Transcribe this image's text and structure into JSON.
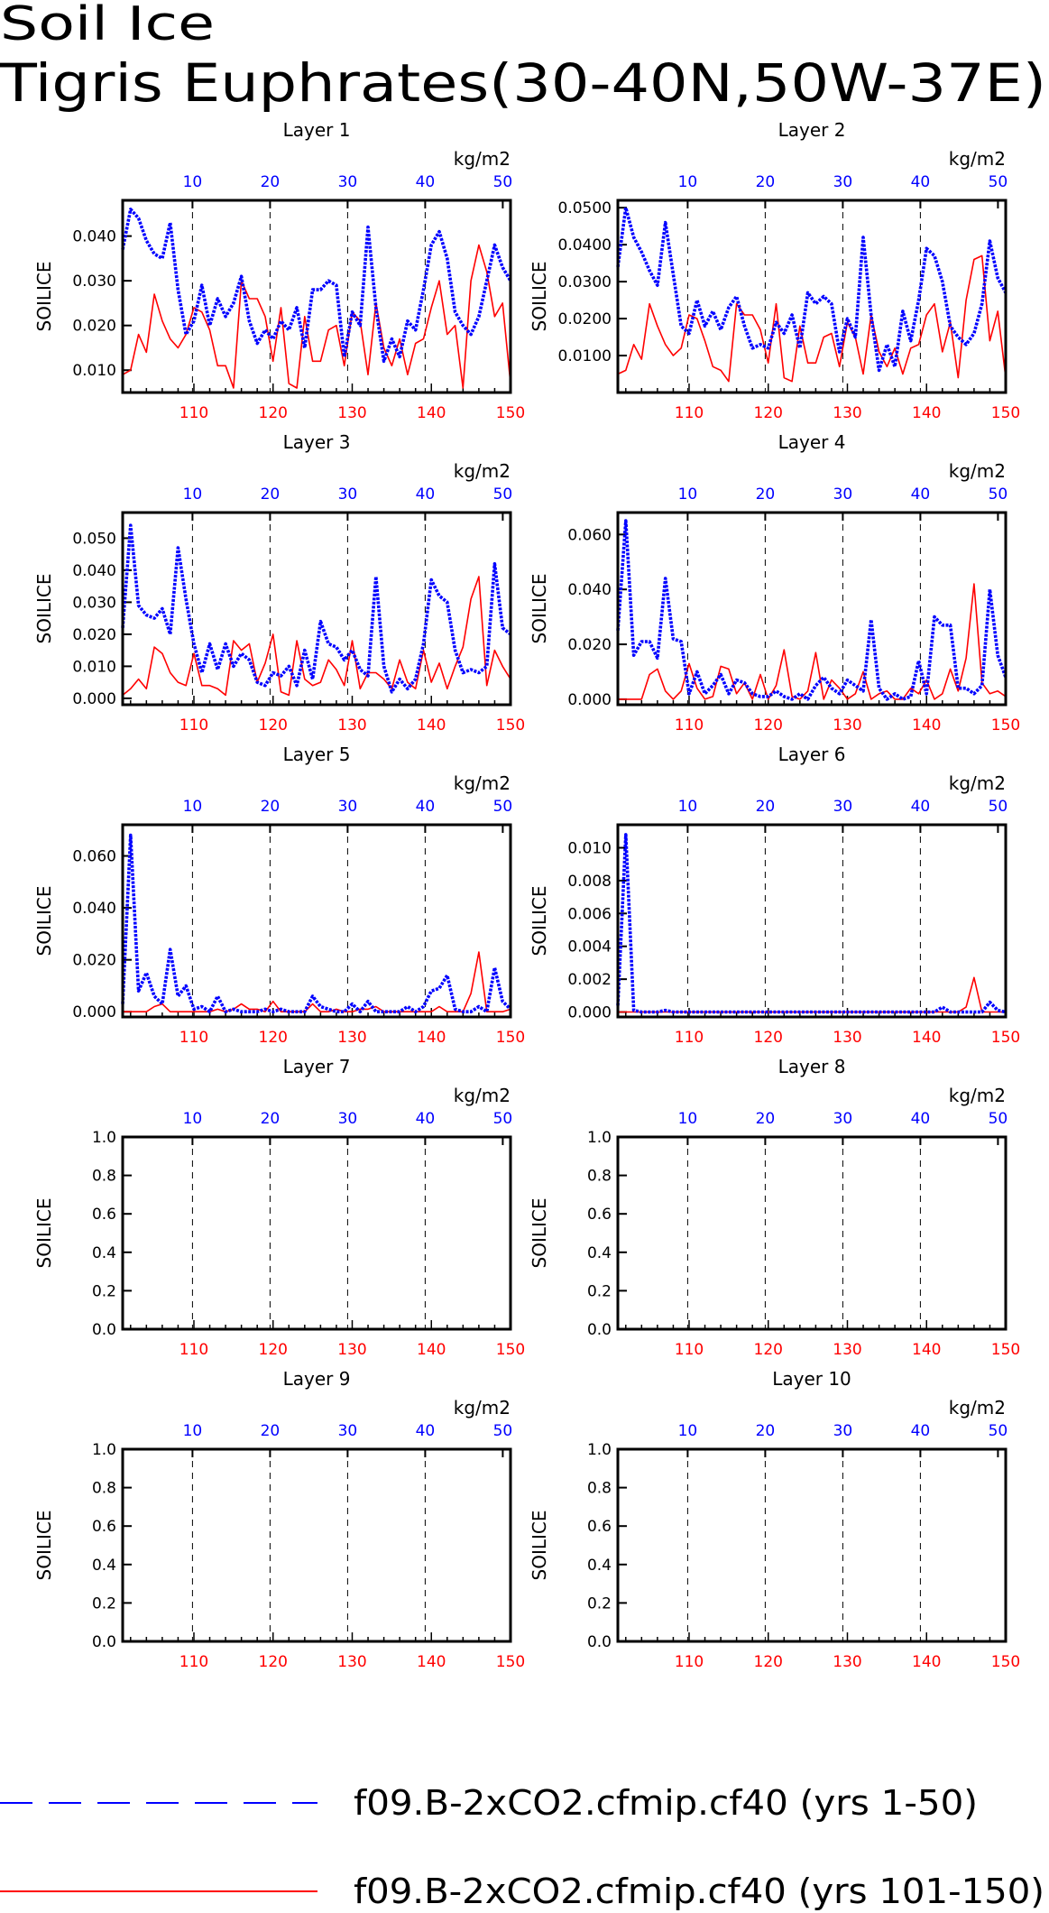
{
  "title": "Soil Ice",
  "subtitle": "Tigris Euphrates(30-40N,50W-37E)",
  "colors": {
    "series_a": "#0000ff",
    "series_b": "#ff0000",
    "axis": "#000000"
  },
  "legend": [
    {
      "label": "f09.B-2xCO2.cfmip.cf40 (yrs 1-50)",
      "style": "dashed",
      "color": "#0000ff"
    },
    {
      "label": "f09.B-2xCO2.cfmip.cf40 (yrs 101-150)",
      "style": "solid",
      "color": "#ff0000"
    }
  ],
  "chart_data": [
    {
      "type": "line",
      "title": "Layer 1",
      "ylabel": "SOILICE",
      "top_unit": "kg/m2",
      "x_bottom": [
        101,
        150
      ],
      "x_bottom_ticks": [
        110,
        120,
        130,
        140,
        150
      ],
      "x_top_ticks": [
        10,
        20,
        30,
        40,
        50
      ],
      "ylim": [
        0.005,
        0.048
      ],
      "yticks": [
        "0.010",
        "0.020",
        "0.030",
        "0.040"
      ],
      "ytick_values": [
        0.01,
        0.02,
        0.03,
        0.04
      ],
      "grid": "vertical dashed at top ticks",
      "series": [
        {
          "values": [
            0.037,
            0.046,
            0.044,
            0.039,
            0.036,
            0.035,
            0.043,
            0.028,
            0.018,
            0.021,
            0.029,
            0.02,
            0.026,
            0.022,
            0.025,
            0.031,
            0.021,
            0.016,
            0.019,
            0.017,
            0.021,
            0.019,
            0.024,
            0.015,
            0.028,
            0.028,
            0.03,
            0.029,
            0.013,
            0.023,
            0.02,
            0.042,
            0.024,
            0.012,
            0.017,
            0.013,
            0.021,
            0.019,
            0.028,
            0.038,
            0.041,
            0.035,
            0.023,
            0.02,
            0.018,
            0.022,
            0.03,
            0.038,
            0.033,
            0.03
          ]
        },
        {
          "values": [
            0.009,
            0.01,
            0.018,
            0.014,
            0.027,
            0.021,
            0.017,
            0.015,
            0.018,
            0.024,
            0.023,
            0.019,
            0.011,
            0.011,
            0.006,
            0.03,
            0.026,
            0.026,
            0.022,
            0.012,
            0.024,
            0.007,
            0.006,
            0.022,
            0.012,
            0.012,
            0.019,
            0.02,
            0.011,
            0.023,
            0.021,
            0.009,
            0.025,
            0.015,
            0.011,
            0.017,
            0.009,
            0.016,
            0.017,
            0.024,
            0.03,
            0.018,
            0.02,
            0.006,
            0.03,
            0.038,
            0.032,
            0.022,
            0.025,
            0.007
          ]
        }
      ]
    },
    {
      "type": "line",
      "title": "Layer 2",
      "ylabel": "SOILICE",
      "top_unit": "kg/m2",
      "x_bottom": [
        101,
        150
      ],
      "x_bottom_ticks": [
        110,
        120,
        130,
        140,
        150
      ],
      "x_top_ticks": [
        10,
        20,
        30,
        40,
        50
      ],
      "ylim": [
        0.0,
        0.052
      ],
      "yticks": [
        "0.0100",
        "0.0200",
        "0.0300",
        "0.0400",
        "0.0500"
      ],
      "ytick_values": [
        0.01,
        0.02,
        0.03,
        0.04,
        0.05
      ],
      "grid": "vertical dashed at top ticks",
      "series": [
        {
          "values": [
            0.034,
            0.05,
            0.042,
            0.038,
            0.033,
            0.029,
            0.046,
            0.032,
            0.018,
            0.016,
            0.025,
            0.018,
            0.022,
            0.017,
            0.023,
            0.026,
            0.018,
            0.012,
            0.013,
            0.012,
            0.019,
            0.016,
            0.021,
            0.012,
            0.027,
            0.024,
            0.026,
            0.024,
            0.011,
            0.02,
            0.015,
            0.042,
            0.021,
            0.006,
            0.013,
            0.007,
            0.022,
            0.014,
            0.025,
            0.039,
            0.037,
            0.03,
            0.018,
            0.015,
            0.013,
            0.016,
            0.024,
            0.041,
            0.031,
            0.027
          ]
        },
        {
          "values": [
            0.005,
            0.006,
            0.013,
            0.009,
            0.024,
            0.018,
            0.013,
            0.01,
            0.012,
            0.021,
            0.02,
            0.014,
            0.007,
            0.006,
            0.003,
            0.024,
            0.021,
            0.021,
            0.017,
            0.008,
            0.024,
            0.004,
            0.003,
            0.018,
            0.008,
            0.008,
            0.015,
            0.016,
            0.007,
            0.019,
            0.015,
            0.005,
            0.021,
            0.011,
            0.007,
            0.012,
            0.005,
            0.012,
            0.013,
            0.021,
            0.024,
            0.011,
            0.019,
            0.004,
            0.025,
            0.036,
            0.037,
            0.014,
            0.022,
            0.004
          ]
        }
      ]
    },
    {
      "type": "line",
      "title": "Layer 3",
      "ylabel": "SOILICE",
      "top_unit": "kg/m2",
      "x_bottom": [
        101,
        150
      ],
      "x_bottom_ticks": [
        110,
        120,
        130,
        140,
        150
      ],
      "x_top_ticks": [
        10,
        20,
        30,
        40,
        50
      ],
      "ylim": [
        -0.002,
        0.058
      ],
      "yticks": [
        "0.000",
        "0.010",
        "0.020",
        "0.030",
        "0.040",
        "0.050"
      ],
      "ytick_values": [
        0,
        0.01,
        0.02,
        0.03,
        0.04,
        0.05
      ],
      "grid": "vertical dashed at top ticks",
      "series": [
        {
          "values": [
            0.022,
            0.054,
            0.029,
            0.026,
            0.025,
            0.028,
            0.02,
            0.047,
            0.031,
            0.017,
            0.008,
            0.017,
            0.009,
            0.017,
            0.01,
            0.014,
            0.012,
            0.005,
            0.004,
            0.008,
            0.007,
            0.01,
            0.004,
            0.015,
            0.006,
            0.024,
            0.017,
            0.016,
            0.012,
            0.015,
            0.009,
            0.007,
            0.038,
            0.01,
            0.002,
            0.006,
            0.003,
            0.006,
            0.017,
            0.037,
            0.032,
            0.03,
            0.015,
            0.008,
            0.009,
            0.008,
            0.01,
            0.042,
            0.022,
            0.02
          ]
        },
        {
          "values": [
            0.001,
            0.003,
            0.006,
            0.003,
            0.016,
            0.014,
            0.008,
            0.005,
            0.004,
            0.014,
            0.004,
            0.004,
            0.003,
            0.001,
            0.018,
            0.015,
            0.017,
            0.005,
            0.011,
            0.02,
            0.002,
            0.001,
            0.018,
            0.006,
            0.004,
            0.005,
            0.012,
            0.009,
            0.004,
            0.018,
            0.003,
            0.008,
            0.008,
            0.006,
            0.003,
            0.012,
            0.005,
            0.003,
            0.015,
            0.005,
            0.011,
            0.003,
            0.01,
            0.016,
            0.031,
            0.038,
            0.004,
            0.015,
            0.01,
            0.006
          ]
        }
      ]
    },
    {
      "type": "line",
      "title": "Layer 4",
      "ylabel": "SOILICE",
      "top_unit": "kg/m2",
      "x_bottom": [
        101,
        150
      ],
      "x_bottom_ticks": [
        110,
        120,
        130,
        140,
        150
      ],
      "x_top_ticks": [
        10,
        20,
        30,
        40,
        50
      ],
      "ylim": [
        -0.002,
        0.068
      ],
      "yticks": [
        "0.000",
        "0.020",
        "0.040",
        "0.060"
      ],
      "ytick_values": [
        0,
        0.02,
        0.04,
        0.06
      ],
      "grid": "vertical dashed at top ticks",
      "series": [
        {
          "values": [
            0.025,
            0.065,
            0.016,
            0.021,
            0.021,
            0.015,
            0.044,
            0.022,
            0.021,
            0.002,
            0.01,
            0.002,
            0.005,
            0.009,
            0.002,
            0.007,
            0.006,
            0.002,
            0.001,
            0.001,
            0.003,
            0.001,
            0.0,
            0.002,
            0.0,
            0.005,
            0.008,
            0.004,
            0.002,
            0.007,
            0.005,
            0.003,
            0.029,
            0.004,
            0.0,
            0.002,
            0.0,
            0.001,
            0.014,
            0.002,
            0.03,
            0.027,
            0.027,
            0.004,
            0.004,
            0.002,
            0.005,
            0.04,
            0.016,
            0.008
          ]
        },
        {
          "values": [
            0.0,
            0.0,
            0.0,
            0.0,
            0.009,
            0.011,
            0.003,
            0.0,
            0.003,
            0.013,
            0.004,
            0.0,
            0.001,
            0.012,
            0.011,
            0.002,
            0.006,
            0.0,
            0.009,
            0.0,
            0.005,
            0.018,
            0.001,
            0.0,
            0.003,
            0.017,
            0.0,
            0.007,
            0.004,
            0.0,
            0.002,
            0.01,
            0.0,
            0.002,
            0.003,
            0.0,
            0.0,
            0.004,
            0.002,
            0.007,
            0.0,
            0.002,
            0.011,
            0.003,
            0.015,
            0.042,
            0.006,
            0.002,
            0.003,
            0.001
          ]
        }
      ]
    },
    {
      "type": "line",
      "title": "Layer 5",
      "ylabel": "SOILICE",
      "top_unit": "kg/m2",
      "x_bottom": [
        101,
        150
      ],
      "x_bottom_ticks": [
        110,
        120,
        130,
        140,
        150
      ],
      "x_top_ticks": [
        10,
        20,
        30,
        40,
        50
      ],
      "ylim": [
        -0.002,
        0.072
      ],
      "yticks": [
        "0.000",
        "0.020",
        "0.040",
        "0.060"
      ],
      "ytick_values": [
        0,
        0.02,
        0.04,
        0.06
      ],
      "grid": "vertical dashed at top ticks",
      "series": [
        {
          "values": [
            0.003,
            0.068,
            0.008,
            0.015,
            0.006,
            0.003,
            0.024,
            0.006,
            0.01,
            0.001,
            0.002,
            0.0,
            0.006,
            0.0,
            0.001,
            0.0,
            0.0,
            0.0,
            0.001,
            0.0,
            0.001,
            0.0,
            0.0,
            0.0,
            0.006,
            0.002,
            0.001,
            0.0,
            0.0,
            0.003,
            0.0,
            0.004,
            0.0,
            0.0,
            0.0,
            0.0,
            0.002,
            0.0,
            0.002,
            0.008,
            0.009,
            0.014,
            0.001,
            0.0,
            0.0,
            0.002,
            0.0,
            0.017,
            0.004,
            0.001
          ]
        },
        {
          "values": [
            0.0,
            0.0,
            0.0,
            0.0,
            0.002,
            0.003,
            0.0,
            0.0,
            0.0,
            0.0,
            0.0,
            0.0,
            0.001,
            0.0,
            0.001,
            0.003,
            0.001,
            0.001,
            0.0,
            0.004,
            0.0,
            0.0,
            0.0,
            0.0,
            0.003,
            0.0,
            0.0,
            0.001,
            0.0,
            0.0,
            0.001,
            0.001,
            0.002,
            0.0,
            0.0,
            0.0,
            0.0,
            0.0,
            0.0,
            0.0,
            0.002,
            0.0,
            0.0,
            0.0,
            0.007,
            0.023,
            0.0,
            0.0,
            0.0,
            0.001
          ]
        }
      ]
    },
    {
      "type": "line",
      "title": "Layer 6",
      "ylabel": "SOILICE",
      "top_unit": "kg/m2",
      "x_bottom": [
        101,
        150
      ],
      "x_bottom_ticks": [
        110,
        120,
        130,
        140,
        150
      ],
      "x_top_ticks": [
        10,
        20,
        30,
        40,
        50
      ],
      "ylim": [
        -0.0003,
        0.0114
      ],
      "yticks": [
        "0.000",
        "0.002",
        "0.004",
        "0.006",
        "0.008",
        "0.010"
      ],
      "ytick_values": [
        0,
        0.002,
        0.004,
        0.006,
        0.008,
        0.01
      ],
      "grid": "vertical dashed at top ticks",
      "series": [
        {
          "values": [
            0.0004,
            0.0108,
            0.0001,
            0.0,
            0.0,
            0.0,
            0.0001,
            0.0,
            0.0,
            0.0,
            0.0,
            0.0,
            0.0,
            0.0,
            0.0,
            0.0,
            0.0,
            0.0,
            0.0,
            0.0,
            0.0,
            0.0,
            0.0,
            0.0,
            0.0,
            0.0,
            0.0,
            0.0,
            0.0,
            0.0,
            0.0,
            0.0,
            0.0,
            0.0,
            0.0,
            0.0,
            0.0,
            0.0,
            0.0,
            0.0,
            0.0,
            0.0003,
            0.0,
            0.0,
            0.0,
            0.0,
            0.0,
            0.0006,
            0.0001,
            0.0
          ]
        },
        {
          "values": [
            0.0,
            0.0,
            0.0,
            0.0,
            0.0,
            0.0,
            0.0,
            0.0,
            0.0,
            0.0,
            0.0,
            0.0,
            0.0,
            0.0,
            0.0,
            0.0,
            0.0,
            0.0,
            0.0,
            0.0,
            0.0,
            0.0,
            0.0,
            0.0,
            0.0,
            0.0,
            0.0,
            0.0,
            0.0,
            0.0,
            0.0,
            0.0,
            0.0,
            0.0,
            0.0,
            0.0,
            0.0,
            0.0,
            0.0,
            0.0,
            0.0,
            0.0,
            0.0,
            0.0,
            0.0003,
            0.0021,
            0.0,
            0.0,
            0.0,
            0.0
          ]
        }
      ]
    },
    {
      "type": "line",
      "title": "Layer 7",
      "ylabel": "SOILICE",
      "top_unit": "kg/m2",
      "x_bottom": [
        101,
        150
      ],
      "x_bottom_ticks": [
        110,
        120,
        130,
        140,
        150
      ],
      "x_top_ticks": [
        10,
        20,
        30,
        40,
        50
      ],
      "ylim": [
        0,
        1
      ],
      "yticks": [
        "0.0",
        "0.2",
        "0.4",
        "0.6",
        "0.8",
        "1.0"
      ],
      "ytick_values": [
        0,
        0.2,
        0.4,
        0.6,
        0.8,
        1.0
      ],
      "grid": "vertical dashed at top ticks",
      "series": []
    },
    {
      "type": "line",
      "title": "Layer 8",
      "ylabel": "SOILICE",
      "top_unit": "kg/m2",
      "x_bottom": [
        101,
        150
      ],
      "x_bottom_ticks": [
        110,
        120,
        130,
        140,
        150
      ],
      "x_top_ticks": [
        10,
        20,
        30,
        40,
        50
      ],
      "ylim": [
        0,
        1
      ],
      "yticks": [
        "0.0",
        "0.2",
        "0.4",
        "0.6",
        "0.8",
        "1.0"
      ],
      "ytick_values": [
        0,
        0.2,
        0.4,
        0.6,
        0.8,
        1.0
      ],
      "grid": "vertical dashed at top ticks",
      "series": []
    },
    {
      "type": "line",
      "title": "Layer 9",
      "ylabel": "SOILICE",
      "top_unit": "kg/m2",
      "x_bottom": [
        101,
        150
      ],
      "x_bottom_ticks": [
        110,
        120,
        130,
        140,
        150
      ],
      "x_top_ticks": [
        10,
        20,
        30,
        40,
        50
      ],
      "ylim": [
        0,
        1
      ],
      "yticks": [
        "0.0",
        "0.2",
        "0.4",
        "0.6",
        "0.8",
        "1.0"
      ],
      "ytick_values": [
        0,
        0.2,
        0.4,
        0.6,
        0.8,
        1.0
      ],
      "grid": "vertical dashed at top ticks",
      "series": []
    },
    {
      "type": "line",
      "title": "Layer 10",
      "ylabel": "SOILICE",
      "top_unit": "kg/m2",
      "x_bottom": [
        101,
        150
      ],
      "x_bottom_ticks": [
        110,
        120,
        130,
        140,
        150
      ],
      "x_top_ticks": [
        10,
        20,
        30,
        40,
        50
      ],
      "ylim": [
        0,
        1
      ],
      "yticks": [
        "0.0",
        "0.2",
        "0.4",
        "0.6",
        "0.8",
        "1.0"
      ],
      "ytick_values": [
        0,
        0.2,
        0.4,
        0.6,
        0.8,
        1.0
      ],
      "grid": "vertical dashed at top ticks",
      "series": []
    }
  ]
}
